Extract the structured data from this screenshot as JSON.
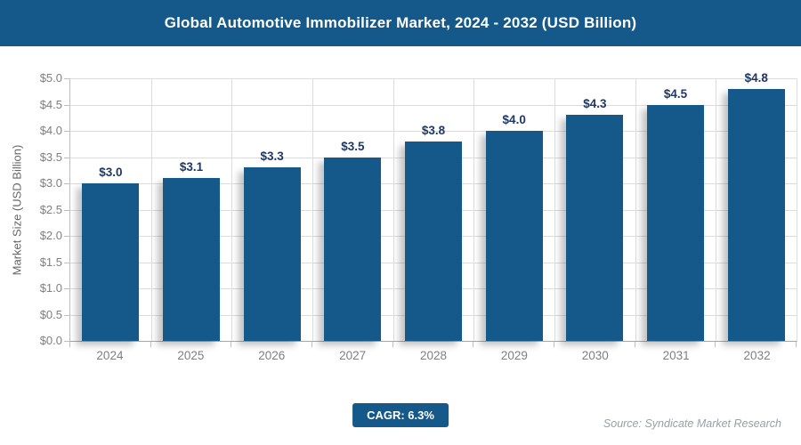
{
  "header": {
    "title": "Global Automotive Immobilizer Market, 2024 - 2032 (USD Billion)"
  },
  "chart_data": {
    "type": "bar",
    "title": "Global Automotive Immobilizer Market, 2024 - 2032 (USD Billion)",
    "categories": [
      "2024",
      "2025",
      "2026",
      "2027",
      "2028",
      "2029",
      "2030",
      "2031",
      "2032"
    ],
    "values": [
      3.0,
      3.1,
      3.3,
      3.5,
      3.8,
      4.0,
      4.3,
      4.5,
      4.8
    ],
    "bar_labels": [
      "$3.0",
      "$3.1",
      "$3.3",
      "$3.5",
      "$3.8",
      "$4.0",
      "$4.3",
      "$4.5",
      "$4.8"
    ],
    "xlabel": "",
    "ylabel": "Market Size (USD Billion)",
    "ylim": [
      0,
      5
    ],
    "ytick_step": 0.5,
    "ytick_labels": [
      "$0.0",
      "$0.5",
      "$1.0",
      "$1.5",
      "$2.0",
      "$2.5",
      "$3.0",
      "$3.5",
      "$4.0",
      "$4.5",
      "$5.0"
    ],
    "grid": true,
    "legend": false
  },
  "footer": {
    "cagr_badge": "CAGR: 6.3%",
    "source": "Source: Syndicate Market Research"
  },
  "colors": {
    "brand_blue": "#15598A",
    "bar": "#15598A",
    "bar_label": "#1F3864",
    "axis_text": "#7F7F7F",
    "axis_title": "#666666",
    "gridline": "#DCDCDC",
    "axis_line": "#BFBFBF",
    "baseline": "#A6A6A6",
    "source_text": "#9AA0A6",
    "background": "#FFFFFF"
  }
}
